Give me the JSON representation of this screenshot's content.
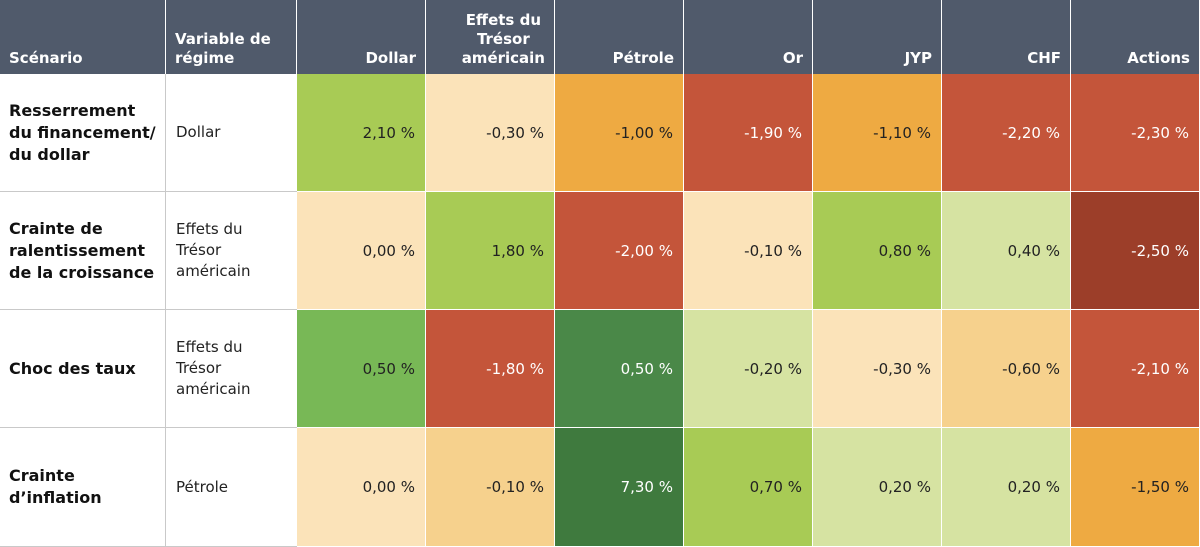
{
  "chart_data": {
    "type": "heatmap",
    "columns": [
      "Scénario",
      "Variable de\nrégime",
      "Dollar",
      "Effets du\nTrésor\naméricain",
      "Pétrole",
      "Or",
      "JYP",
      "CHF",
      "Actions"
    ],
    "rows": [
      {
        "scenario": "Resserrement\ndu financement/\ndu dollar",
        "regime": "Dollar",
        "values": [
          2.1,
          -0.3,
          -1.0,
          -1.9,
          -1.1,
          -2.2,
          -2.3
        ],
        "labels": [
          "2,10 %",
          "-0,30 %",
          "-1,00 %",
          "-1,90 %",
          "-1,10 %",
          "-2,20 %",
          "-2,30 %"
        ],
        "colors": [
          "#a8cb55",
          "#fbe3b9",
          "#eeaa42",
          "#c4553a",
          "#eeaa42",
          "#c4553a",
          "#c4553a"
        ]
      },
      {
        "scenario": "Crainte de\nralentissement\nde la croissance",
        "regime": "Effets du\nTrésor\naméricain",
        "values": [
          0.0,
          1.8,
          -2.0,
          -0.1,
          0.8,
          0.4,
          -2.5
        ],
        "labels": [
          "0,00 %",
          "1,80 %",
          "-2,00 %",
          "-0,10 %",
          "0,80 %",
          "0,40 %",
          "-2,50 %"
        ],
        "colors": [
          "#fbe3b9",
          "#a8cb55",
          "#c4553a",
          "#fbe3b9",
          "#a8cb55",
          "#d6e3a2",
          "#9c3e29"
        ]
      },
      {
        "scenario": "Choc des taux",
        "regime": "Effets du\nTrésor\naméricain",
        "values": [
          0.5,
          -1.8,
          0.5,
          -0.2,
          -0.3,
          -0.6,
          -2.1
        ],
        "labels": [
          "0,50 %",
          "-1,80 %",
          "0,50 %",
          "-0,20 %",
          "-0,30 %",
          "-0,60 %",
          "-2,10 %"
        ],
        "colors": [
          "#78b856",
          "#c4553a",
          "#4a8848",
          "#d6e3a2",
          "#fbe3b9",
          "#f6d18d",
          "#c4553a"
        ]
      },
      {
        "scenario": "Crainte\nd’inflation",
        "regime": "Pétrole",
        "values": [
          0.0,
          -0.1,
          7.3,
          0.7,
          0.2,
          0.2,
          -1.5
        ],
        "labels": [
          "0,00 %",
          "-0,10 %",
          "7,30 %",
          "0,70 %",
          "0,20 %",
          "0,20 %",
          "-1,50 %"
        ],
        "colors": [
          "#fbe3b9",
          "#f6d18d",
          "#3f7a3e",
          "#a8cb55",
          "#d6e3a2",
          "#d6e3a2",
          "#eeaa42"
        ]
      }
    ]
  }
}
